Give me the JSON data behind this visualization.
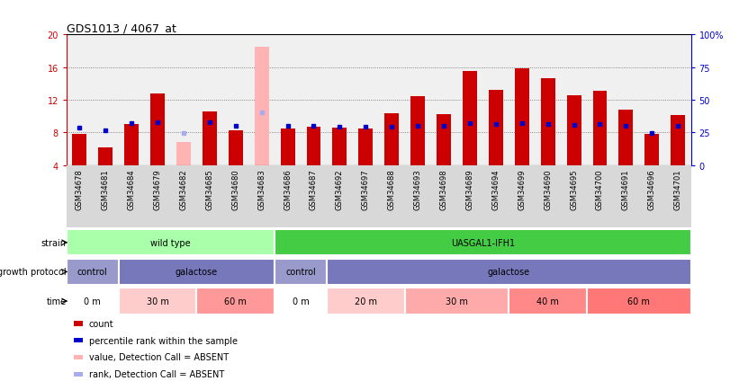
{
  "title": "GDS1013 / 4067_at",
  "samples": [
    "GSM34678",
    "GSM34681",
    "GSM34684",
    "GSM34679",
    "GSM34682",
    "GSM34685",
    "GSM34680",
    "GSM34683",
    "GSM34686",
    "GSM34687",
    "GSM34692",
    "GSM34697",
    "GSM34688",
    "GSM34693",
    "GSM34698",
    "GSM34689",
    "GSM34694",
    "GSM34699",
    "GSM34690",
    "GSM34695",
    "GSM34700",
    "GSM34691",
    "GSM34696",
    "GSM34701"
  ],
  "count_values": [
    7.8,
    6.2,
    9.0,
    12.8,
    6.8,
    10.6,
    8.3,
    18.5,
    8.5,
    8.7,
    8.6,
    8.5,
    10.3,
    12.4,
    10.2,
    15.5,
    13.2,
    15.8,
    14.6,
    12.5,
    13.1,
    10.8,
    7.8,
    10.1
  ],
  "percentile_values": [
    8.6,
    8.3,
    9.1,
    9.3,
    7.9,
    9.3,
    8.8,
    10.5,
    8.8,
    8.8,
    8.7,
    8.7,
    8.7,
    8.8,
    8.8,
    9.1,
    9.0,
    9.1,
    9.0,
    8.9,
    9.0,
    8.8,
    7.9,
    8.8
  ],
  "absent": [
    false,
    false,
    false,
    false,
    true,
    false,
    false,
    true,
    false,
    false,
    false,
    false,
    false,
    false,
    false,
    false,
    false,
    false,
    false,
    false,
    false,
    false,
    false,
    false
  ],
  "ylim_left": [
    4,
    20
  ],
  "ylim_right": [
    0,
    100
  ],
  "yticks_left": [
    4,
    8,
    12,
    16,
    20
  ],
  "yticks_right": [
    0,
    25,
    50,
    75,
    100
  ],
  "ytick_labels_right": [
    "0",
    "25",
    "50",
    "75",
    "100%"
  ],
  "color_red": "#CC0000",
  "color_pink": "#FFB3B3",
  "color_blue": "#0000CC",
  "color_blue_light": "#AAAAEE",
  "bg_color": "#F0F0F0",
  "strain_groups": [
    {
      "label": "wild type",
      "start": 0,
      "end": 8,
      "color": "#AAFFAA"
    },
    {
      "label": "UASGAL1-IFH1",
      "start": 8,
      "end": 24,
      "color": "#44CC44"
    }
  ],
  "protocol_groups": [
    {
      "label": "control",
      "start": 0,
      "end": 2,
      "color": "#9999CC"
    },
    {
      "label": "galactose",
      "start": 2,
      "end": 8,
      "color": "#7777BB"
    },
    {
      "label": "control",
      "start": 8,
      "end": 10,
      "color": "#9999CC"
    },
    {
      "label": "galactose",
      "start": 10,
      "end": 24,
      "color": "#7777BB"
    }
  ],
  "time_groups": [
    {
      "label": "0 m",
      "start": 0,
      "end": 2,
      "color": "#FFFFFF"
    },
    {
      "label": "30 m",
      "start": 2,
      "end": 5,
      "color": "#FFCCCC"
    },
    {
      "label": "60 m",
      "start": 5,
      "end": 8,
      "color": "#FF9999"
    },
    {
      "label": "0 m",
      "start": 8,
      "end": 10,
      "color": "#FFFFFF"
    },
    {
      "label": "20 m",
      "start": 10,
      "end": 13,
      "color": "#FFCCCC"
    },
    {
      "label": "30 m",
      "start": 13,
      "end": 17,
      "color": "#FFAAAA"
    },
    {
      "label": "40 m",
      "start": 17,
      "end": 20,
      "color": "#FF8888"
    },
    {
      "label": "60 m",
      "start": 20,
      "end": 24,
      "color": "#FF7777"
    }
  ],
  "legend_labels": [
    "count",
    "percentile rank within the sample",
    "value, Detection Call = ABSENT",
    "rank, Detection Call = ABSENT"
  ],
  "legend_colors": [
    "#CC0000",
    "#0000CC",
    "#FFB3B3",
    "#AAAAEE"
  ],
  "row_labels": [
    "strain",
    "growth protocol",
    "time"
  ],
  "dotted_line_color": "#666666"
}
